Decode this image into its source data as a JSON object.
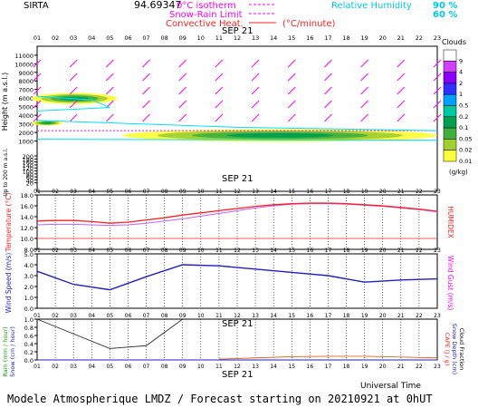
{
  "header": {
    "station": "SIRTA",
    "coords": "94.69347",
    "legend_0c": "0°C isotherm",
    "legend_snow": "Snow-Rain Limit",
    "legend_conv": "Convective Heat.",
    "legend_conv_unit": "(°C/minute)",
    "legend_rh": "Relative Humidity",
    "rh_90": "90 %",
    "rh_60": "60 %",
    "date_label": "SEP 21"
  },
  "footer": {
    "universal_time": "Universal Time",
    "title": "Modele Atmospherique LMDZ / Forecast starting on 20210921 at 0hUT"
  },
  "colors": {
    "magenta": "#ff00ff",
    "cyan": "#00e0ff",
    "temp": "#ff2020",
    "humidex": "#c060ff",
    "wind": "#2020c0",
    "rain": "#303030",
    "cape": "#e06020"
  },
  "chart_data": [
    {
      "type": "heatmap",
      "name": "clouds",
      "title": "Clouds",
      "unit": "(g/kg)",
      "ylabel": "Height (m a.s.l.)",
      "ylabel_lower": "Up to 200 m a.s.l.",
      "hours": [
        "01",
        "02",
        "03",
        "04",
        "05",
        "06",
        "07",
        "08",
        "09",
        "10",
        "11",
        "12",
        "13",
        "14",
        "15",
        "16",
        "17",
        "18",
        "19",
        "20",
        "21",
        "22",
        "23"
      ],
      "yticks_upper": [
        11000,
        10000,
        9000,
        8000,
        7000,
        6000,
        5000,
        4000,
        3000,
        2000,
        1000
      ],
      "yticks_lower": [
        200,
        180,
        160,
        140,
        120,
        100,
        80,
        60,
        40,
        20
      ],
      "colorbar_levels": [
        "9",
        "4",
        "2",
        "1",
        "0.5",
        "0.2",
        "0.1",
        "0.05",
        "0.02",
        "0.01"
      ],
      "colorbar_colors": [
        "#ffffff",
        "#d040ff",
        "#8a00ff",
        "#3030ff",
        "#00a0ff",
        "#00c8a0",
        "#00a050",
        "#40b040",
        "#a0d030",
        "#ffff40"
      ],
      "zero_isotherm_m": 2200,
      "snow_rain_limit_m": 2000,
      "layers": [
        {
          "from_hour": 1,
          "to_hour": 5,
          "base_m": 5300,
          "top_m": 6600,
          "max_g_kg": 0.1
        },
        {
          "from_hour": 1,
          "to_hour": 2,
          "base_m": 2800,
          "top_m": 3400,
          "max_g_kg": 0.05
        },
        {
          "from_hour": 6,
          "to_hour": 23,
          "base_m": 900,
          "top_m": 2400,
          "max_g_kg": 0.1
        }
      ]
    },
    {
      "type": "line",
      "name": "temperature",
      "ylabel": "Temperature (°C)",
      "ylabel_right": "HUMIDEX",
      "ylim": [
        8,
        18
      ],
      "yticks": [
        "18.0",
        "16.0",
        "14.0",
        "12.0",
        "10.0",
        "8.0"
      ],
      "x": [
        1,
        2,
        3,
        4,
        5,
        6,
        7,
        8,
        9,
        10,
        11,
        12,
        13,
        14,
        15,
        16,
        17,
        18,
        19,
        20,
        21,
        22,
        23
      ],
      "series": [
        {
          "name": "Temperature",
          "values": [
            13.2,
            13.3,
            13.3,
            13.1,
            12.8,
            13.0,
            13.4,
            13.8,
            14.3,
            14.7,
            15.1,
            15.5,
            15.9,
            16.2,
            16.4,
            16.5,
            16.5,
            16.4,
            16.2,
            16.0,
            15.7,
            15.4,
            15.0
          ]
        },
        {
          "name": "HUMIDEX",
          "values": [
            12.5,
            12.6,
            12.6,
            12.5,
            12.4,
            12.5,
            12.8,
            13.2,
            13.6,
            14.1,
            14.6,
            15.1,
            15.6,
            16.0,
            16.3,
            16.4,
            16.4,
            16.3,
            16.1,
            15.9,
            15.6,
            15.3,
            14.9
          ]
        }
      ]
    },
    {
      "type": "line",
      "name": "wind",
      "ylabel": "Wind Speed (m/s)",
      "ylabel_right": "Wind Gust (m/s)",
      "ylim": [
        0,
        5
      ],
      "yticks": [
        "5.0",
        "4.0",
        "3.0",
        "2.0",
        "1.0",
        "0.0"
      ],
      "x": [
        1,
        3,
        5,
        7,
        9,
        11,
        13,
        15,
        17,
        19,
        21,
        23
      ],
      "series": [
        {
          "name": "Wind Speed",
          "values": [
            3.4,
            2.2,
            1.7,
            2.9,
            4.0,
            3.9,
            3.6,
            3.3,
            3.0,
            2.4,
            2.6,
            2.7
          ]
        }
      ]
    },
    {
      "type": "line",
      "name": "rain",
      "ylabel": "Rain (mm / hour)",
      "ylabel_2": "Snow (cm / hour)",
      "ylabel_right": "CAPE (J / g)",
      "ylabel_right_2": "Snow Depth (cm)",
      "ylabel_right_3": "Cloud Fraction",
      "ylim": [
        0,
        1
      ],
      "yticks": [
        "1.0",
        "0.8",
        "0.6",
        "0.4",
        "0.2",
        "0.0"
      ],
      "x": [
        1,
        5,
        7,
        9
      ],
      "series": [
        {
          "name": "Rain",
          "values": [
            1.0,
            0.28,
            0.35,
            1.0
          ]
        },
        {
          "name": "CAPE",
          "x": [
            11,
            13,
            15,
            17,
            19,
            21,
            23
          ],
          "values": [
            0.02,
            0.05,
            0.08,
            0.09,
            0.09,
            0.07,
            0.05
          ]
        }
      ]
    }
  ]
}
